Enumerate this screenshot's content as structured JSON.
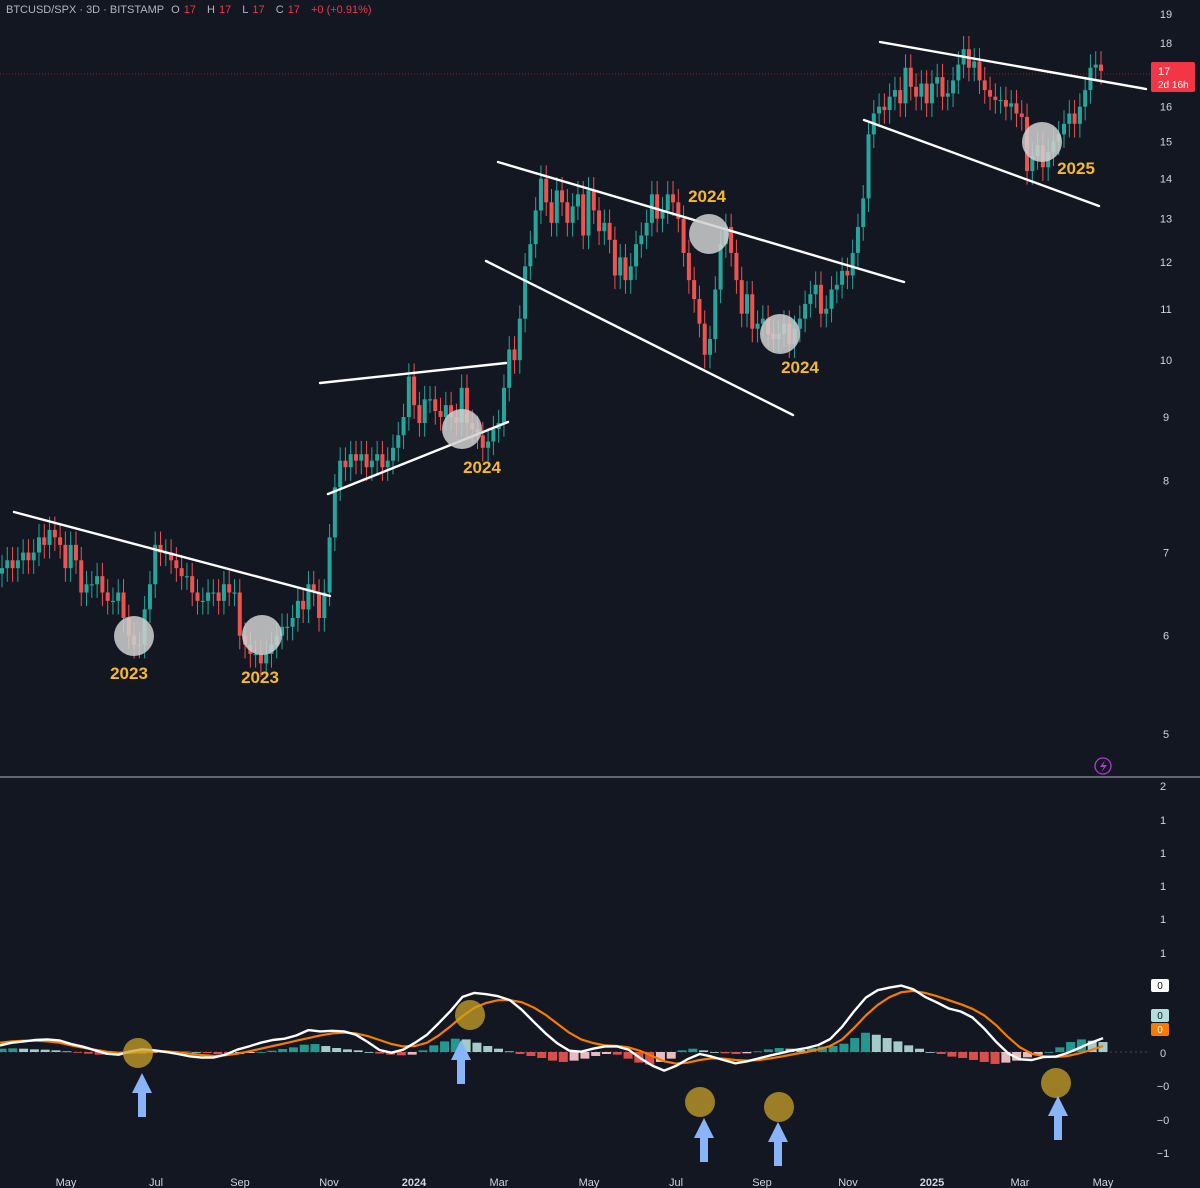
{
  "header": {
    "symbol": "BTCUSD/SPX · 3D · BITSTAMP",
    "o_label": "O",
    "o_value": "17",
    "h_label": "H",
    "h_value": "17",
    "l_label": "L",
    "l_value": "17",
    "c_label": "C",
    "c_value": "17",
    "change": "+0 (+0.91%)"
  },
  "colors": {
    "background": "#131722",
    "bull": "#26a69a",
    "bear": "#ef5350",
    "trendline": "#ffffff",
    "annotation_text": "#f5b82e",
    "macd_line": "#ffffff",
    "signal_line": "#f57c00",
    "hist_up_strong": "#26a69a",
    "hist_up_weak": "#b2dfdb",
    "hist_down_strong": "#ef5350",
    "hist_down_weak": "#ffcdd2",
    "arrow": "#8ab4f8",
    "cross_marker": "#c9a227",
    "price_badge": "#f23645"
  },
  "price_badge": {
    "value": "17",
    "countdown": "2d 16h"
  },
  "lightning_icon": "lightning-icon",
  "chart_data": [
    {
      "type": "candlestick",
      "title": "",
      "scale": "log",
      "ylim": [
        4.7,
        19.3
      ],
      "y_ticks": [
        19,
        18,
        17,
        16,
        15,
        14,
        13,
        12,
        11,
        10,
        9,
        8,
        7,
        6,
        5
      ],
      "series": [
        {
          "close": [
            6.8,
            6.9,
            6.8,
            6.9,
            7.0,
            6.9,
            7.0,
            7.2,
            7.1,
            7.3,
            7.2,
            7.1,
            6.8,
            7.1,
            6.9,
            6.5,
            6.6,
            6.6,
            6.7,
            6.5,
            6.4,
            6.4,
            6.5,
            6.2,
            6.0,
            5.9,
            5.9,
            6.3,
            6.6,
            7.1,
            7.0,
            7.0,
            6.9,
            6.8,
            6.7,
            6.7,
            6.5,
            6.4,
            6.4,
            6.5,
            6.5,
            6.4,
            6.6,
            6.5,
            6.5,
            6.0,
            5.9,
            5.8,
            5.8,
            5.7,
            5.8,
            5.9,
            6.0,
            6.1,
            6.1,
            6.2,
            6.4,
            6.3,
            6.6,
            6.5,
            6.2,
            6.5,
            7.2,
            7.9,
            8.3,
            8.2,
            8.4,
            8.3,
            8.4,
            8.2,
            8.3,
            8.4,
            8.2,
            8.3,
            8.5,
            8.7,
            9.0,
            9.7,
            9.2,
            8.9,
            9.3,
            9.3,
            9.1,
            9.0,
            9.2,
            9.0,
            8.9,
            9.5,
            8.9,
            8.8,
            8.7,
            8.5,
            8.6,
            8.8,
            8.9,
            9.5,
            10.2,
            10.0,
            10.8,
            11.9,
            12.4,
            13.2,
            14.0,
            13.4,
            12.9,
            13.7,
            13.4,
            12.9,
            13.3,
            13.6,
            12.6,
            13.7,
            13.2,
            12.7,
            12.9,
            12.5,
            11.7,
            12.1,
            11.6,
            11.9,
            12.4,
            12.6,
            12.9,
            13.6,
            13.0,
            13.2,
            13.6,
            13.4,
            13.0,
            12.2,
            11.6,
            11.2,
            10.7,
            10.1,
            10.4,
            11.4,
            12.4,
            12.8,
            12.2,
            11.6,
            10.9,
            11.3,
            10.6,
            10.7,
            10.8,
            10.5,
            10.4,
            10.5,
            10.7,
            10.3,
            10.6,
            10.8,
            11.1,
            11.3,
            11.5,
            10.9,
            11.0,
            11.4,
            11.5,
            11.8,
            11.7,
            12.2,
            12.8,
            13.5,
            15.2,
            15.8,
            16.0,
            15.9,
            16.3,
            16.5,
            16.1,
            17.2,
            16.6,
            16.3,
            16.7,
            16.1,
            16.7,
            16.9,
            16.3,
            16.4,
            16.8,
            17.3,
            17.8,
            17.2,
            17.4,
            16.8,
            16.5,
            16.3,
            16.2,
            16.2,
            16.0,
            16.1,
            15.8,
            15.7,
            14.2,
            14.6,
            14.9,
            14.3,
            14.7,
            15.0,
            15.2,
            15.5,
            15.8,
            15.5,
            16.0,
            16.5,
            17.2,
            17.3,
            17.1
          ]
        }
      ],
      "annotations": [
        "2023",
        "2023",
        "2024",
        "2024",
        "2024",
        "2025"
      ]
    },
    {
      "type": "macd",
      "title": "",
      "ylim": [
        -1.1,
        2
      ],
      "y_ticks": [
        "2",
        "1",
        "1",
        "1",
        "1",
        "1",
        "0",
        "−0",
        "−0",
        "−1"
      ],
      "x_ticks": [
        "May",
        "Jul",
        "Sep",
        "Nov",
        "2024",
        "Mar",
        "May",
        "Jul",
        "Sep",
        "Nov",
        "2025",
        "Mar",
        "May"
      ],
      "value_labels": [
        "0",
        "0",
        "0"
      ],
      "series": [
        {
          "name": "",
          "type": "line",
          "values": [
            0.2,
            0.28,
            0.32,
            0.36,
            0.38,
            0.35,
            0.24,
            0.16,
            0.05,
            -0.05,
            -0.08,
            0.02,
            0.08,
            0.05,
            0.0,
            -0.06,
            -0.13,
            -0.17,
            -0.17,
            -0.08,
            0.07,
            0.17,
            0.28,
            0.36,
            0.4,
            0.5,
            0.66,
            0.62,
            0.64,
            0.62,
            0.52,
            0.3,
            0.06,
            -0.02,
            0.07,
            0.28,
            0.52,
            0.87,
            1.24,
            1.66,
            1.78,
            1.74,
            1.68,
            1.56,
            1.27,
            0.91,
            0.56,
            0.26,
            0.04,
            0.01,
            0.1,
            0.17,
            0.17,
            0.07,
            -0.19,
            -0.41,
            -0.56,
            -0.42,
            -0.21,
            -0.06,
            -0.14,
            -0.24,
            -0.34,
            -0.28,
            -0.19,
            -0.1,
            -0.02,
            0.06,
            0.12,
            0.21,
            0.39,
            0.76,
            1.22,
            1.64,
            1.86,
            1.94,
            2.0,
            1.89,
            1.66,
            1.49,
            1.31,
            1.22,
            1.04,
            0.7,
            0.3,
            -0.04,
            -0.22,
            -0.24,
            -0.15,
            -0.14,
            -0.03,
            0.12,
            0.28,
            0.42
          ]
        },
        {
          "name": "",
          "type": "line",
          "values": [
            0.28,
            0.32,
            0.34,
            0.34,
            0.32,
            0.28,
            0.2,
            0.13,
            0.07,
            0.01,
            -0.02,
            -0.02,
            0.01,
            0.02,
            0.02,
            -0.01,
            -0.05,
            -0.09,
            -0.12,
            -0.1,
            -0.05,
            0.02,
            0.1,
            0.18,
            0.26,
            0.34,
            0.42,
            0.5,
            0.56,
            0.58,
            0.56,
            0.48,
            0.36,
            0.24,
            0.17,
            0.18,
            0.28,
            0.5,
            0.78,
            1.08,
            1.33,
            1.48,
            1.56,
            1.56,
            1.5,
            1.34,
            1.12,
            0.85,
            0.58,
            0.38,
            0.27,
            0.2,
            0.18,
            0.14,
            0.03,
            -0.12,
            -0.28,
            -0.35,
            -0.32,
            -0.24,
            -0.19,
            -0.2,
            -0.24,
            -0.26,
            -0.24,
            -0.19,
            -0.13,
            -0.06,
            0.0,
            0.08,
            0.18,
            0.38,
            0.72,
            1.1,
            1.42,
            1.65,
            1.8,
            1.84,
            1.78,
            1.68,
            1.56,
            1.44,
            1.3,
            1.1,
            0.8,
            0.45,
            0.14,
            -0.05,
            -0.13,
            -0.15,
            -0.12,
            -0.04,
            0.06,
            0.18
          ]
        },
        {
          "name": "",
          "type": "histogram",
          "values": [
            0.1,
            0.11,
            0.1,
            0.08,
            0.07,
            0.05,
            0.02,
            -0.02,
            -0.05,
            -0.08,
            -0.09,
            -0.07,
            -0.05,
            -0.04,
            -0.02,
            0.0,
            0.02,
            0.02,
            0.0,
            -0.03,
            -0.06,
            -0.08,
            -0.06,
            -0.03,
            0.0,
            0.04,
            0.09,
            0.14,
            0.22,
            0.24,
            0.18,
            0.12,
            0.08,
            0.05,
            0.0,
            -0.05,
            -0.08,
            -0.1,
            -0.08,
            0.05,
            0.2,
            0.32,
            0.4,
            0.38,
            0.28,
            0.18,
            0.1,
            0.02,
            -0.06,
            -0.12,
            -0.18,
            -0.26,
            -0.3,
            -0.26,
            -0.2,
            -0.12,
            -0.06,
            -0.08,
            -0.2,
            -0.32,
            -0.38,
            -0.3,
            -0.2,
            0.05,
            0.1,
            0.05,
            0.0,
            -0.04,
            -0.06,
            -0.04,
            0.02,
            0.08,
            0.12,
            0.1,
            0.06,
            0.12,
            0.16,
            0.18,
            0.25,
            0.42,
            0.58,
            0.52,
            0.42,
            0.32,
            0.2,
            0.1,
            0.0,
            -0.06,
            -0.14,
            -0.18,
            -0.24,
            -0.3,
            -0.36,
            -0.32,
            -0.26,
            -0.16,
            -0.08,
            0.0,
            0.14,
            0.3,
            0.38,
            0.34,
            0.3
          ]
        }
      ],
      "arrows": 5,
      "cross_markers": 5
    }
  ]
}
